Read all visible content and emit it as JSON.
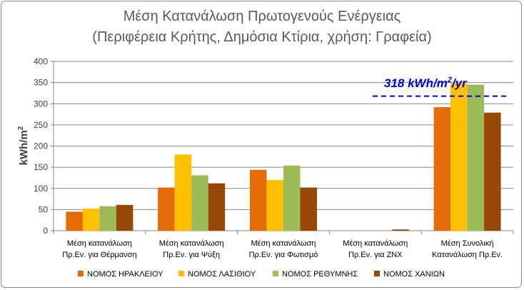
{
  "chart_data": {
    "type": "bar",
    "title_line1": "Μέση Κατανάλωση Πρωτογενούς Ενέργειας",
    "title_line2": "(Περιφέρεια Κρήτης, Δημόσια Κτίρια, χρήση: Γραφεία)",
    "ylabel": "kWh/m",
    "ylabel_sup": "2",
    "ylim": [
      0,
      400
    ],
    "yticks": [
      0,
      50,
      100,
      150,
      200,
      250,
      300,
      350,
      400
    ],
    "grid": true,
    "legend_position": "bottom",
    "categories": [
      [
        "Μέση κατανάλωση",
        "Πρ.Εν. για Θέρμανση"
      ],
      [
        "Μέση κατανάλωση",
        "Πρ.Εν. για Ψύξη"
      ],
      [
        "Μέση κατανάλωση",
        "Πρ.Εν. για Φωτισμό"
      ],
      [
        "Μέση κατανάλωση",
        "Πρ.Εν. για ΖΝΧ"
      ],
      [
        "Μέση Συνολική",
        "Κατανάλωση Πρ.Εν."
      ]
    ],
    "series": [
      {
        "name": "ΝΟΜΟΣ ΗΡΑΚΛΕΙΟΥ",
        "color": "#e36c09",
        "values": [
          45,
          102,
          144,
          0,
          292
        ]
      },
      {
        "name": "ΝΟΜΟΣ ΛΑΣΙΘΙΟΥ",
        "color": "#ffc000",
        "values": [
          52,
          180,
          120,
          0,
          348
        ]
      },
      {
        "name": "ΝΟΜΟΣ ΡΕΘΥΜΝΗΣ",
        "color": "#9bbb59",
        "values": [
          58,
          131,
          154,
          0,
          345
        ]
      },
      {
        "name": "ΝΟΜΟΣ ΧΑΝΙΩΝ",
        "color": "#974806",
        "values": [
          61,
          112,
          102,
          3,
          279
        ]
      }
    ],
    "reference_line": {
      "value": 318,
      "label_main": "318 kWh/m",
      "label_sup": "2",
      "label_tail": "/yr",
      "color": "#0000cc"
    }
  }
}
